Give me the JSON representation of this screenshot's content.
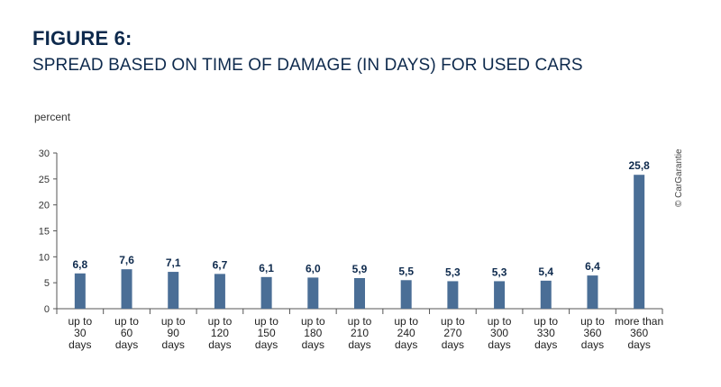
{
  "figure": {
    "title": "FIGURE 6:",
    "subtitle": "SPREAD BASED ON TIME OF DAMAGE (IN DAYS) FOR USED CARS",
    "copyright": "© CarGarantie"
  },
  "chart_data": {
    "type": "bar",
    "ylabel": "percent",
    "xlabel": "",
    "ylim": [
      0,
      30
    ],
    "yticks": [
      0,
      5,
      10,
      15,
      20,
      25,
      30
    ],
    "grid": false,
    "legend": "none",
    "bar_color": "#4a6e96",
    "categories": [
      [
        "up to",
        "30",
        "days"
      ],
      [
        "up to",
        "60",
        "days"
      ],
      [
        "up to",
        "90",
        "days"
      ],
      [
        "up to",
        "120",
        "days"
      ],
      [
        "up to",
        "150",
        "days"
      ],
      [
        "up to",
        "180",
        "days"
      ],
      [
        "up to",
        "210",
        "days"
      ],
      [
        "up to",
        "240",
        "days"
      ],
      [
        "up to",
        "270",
        "days"
      ],
      [
        "up to",
        "300",
        "days"
      ],
      [
        "up to",
        "330",
        "days"
      ],
      [
        "up to",
        "360",
        "days"
      ],
      [
        "more than",
        "360",
        "days"
      ]
    ],
    "values": [
      6.8,
      7.6,
      7.1,
      6.7,
      6.1,
      6.0,
      5.9,
      5.5,
      5.3,
      5.3,
      5.4,
      6.4,
      25.8
    ],
    "value_labels": [
      "6,8",
      "7,6",
      "7,1",
      "6,7",
      "6,1",
      "6,0",
      "5,9",
      "5,5",
      "5,3",
      "5,3",
      "5,4",
      "6,4",
      "25,8"
    ]
  }
}
